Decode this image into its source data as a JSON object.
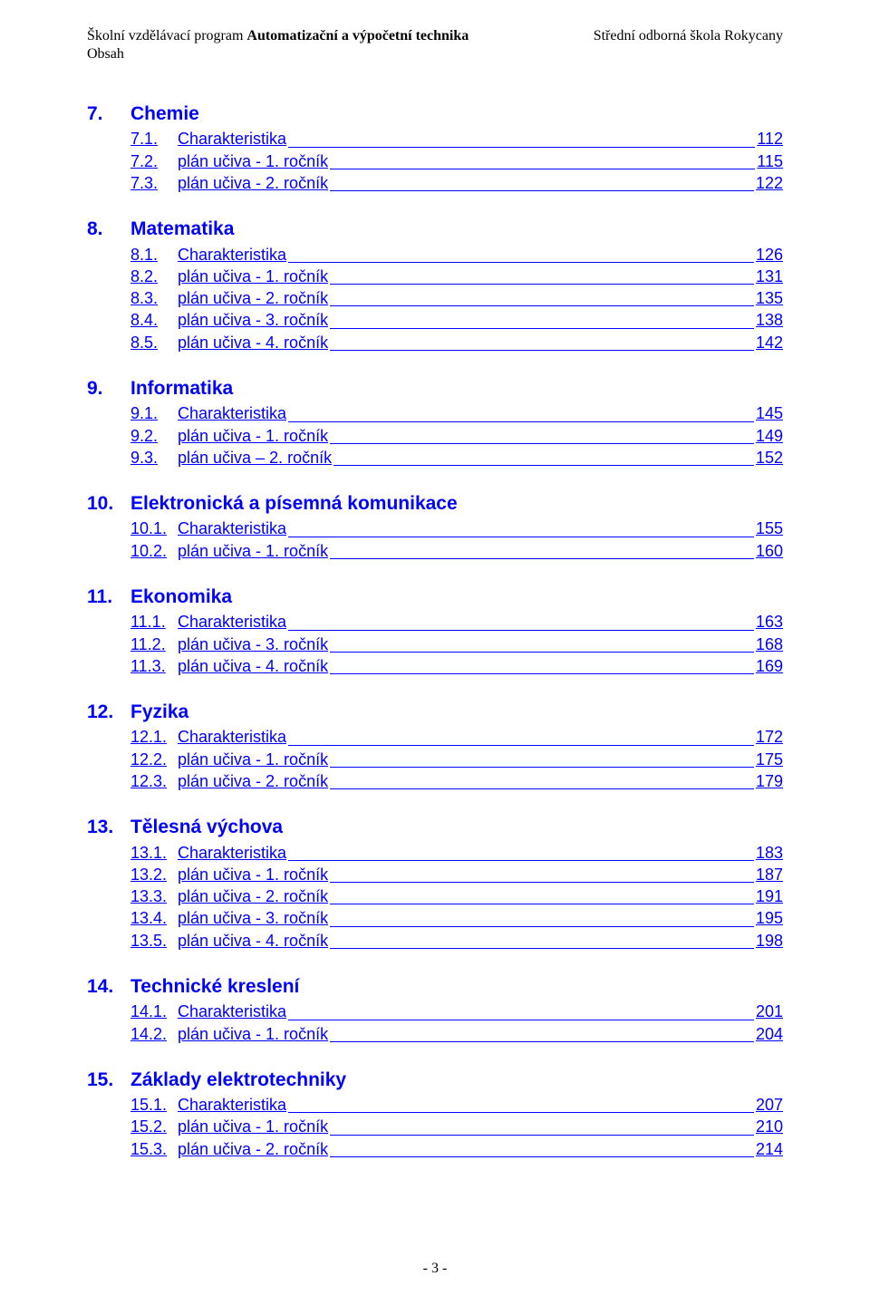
{
  "header": {
    "left_prefix": "Školní vzdělávací program ",
    "left_bold": "Automatizační a výpočetní technika",
    "right": "Střední odborná škola Rokycany",
    "sub": "Obsah"
  },
  "sections": [
    {
      "num": "7.",
      "title": "Chemie",
      "items": [
        {
          "num": "7.1.",
          "label": "Charakteristika",
          "page": "112"
        },
        {
          "num": "7.2.",
          "label": "plán učiva - 1. ročník",
          "page": "115"
        },
        {
          "num": "7.3.",
          "label": "plán učiva - 2. ročník",
          "page": "122"
        }
      ]
    },
    {
      "num": "8.",
      "title": "Matematika",
      "items": [
        {
          "num": "8.1.",
          "label": "Charakteristika",
          "page": "126"
        },
        {
          "num": "8.2.",
          "label": "plán učiva - 1. ročník",
          "page": "131"
        },
        {
          "num": "8.3.",
          "label": "plán učiva - 2. ročník",
          "page": "135"
        },
        {
          "num": "8.4.",
          "label": "plán učiva - 3. ročník",
          "page": "138"
        },
        {
          "num": "8.5.",
          "label": "plán učiva - 4. ročník",
          "page": "142"
        }
      ]
    },
    {
      "num": "9.",
      "title": "Informatika",
      "items": [
        {
          "num": "9.1.",
          "label": "Charakteristika",
          "page": "145"
        },
        {
          "num": "9.2.",
          "label": "plán učiva - 1. ročník",
          "page": "149"
        },
        {
          "num": "9.3.",
          "label": "plán učiva – 2. ročník",
          "page": "152"
        }
      ]
    },
    {
      "num": "10.",
      "title": "Elektronická a písemná komunikace",
      "items": [
        {
          "num": "10.1.",
          "label": "Charakteristika",
          "page": "155"
        },
        {
          "num": "10.2.",
          "label": "plán učiva - 1. ročník",
          "page": "160"
        }
      ]
    },
    {
      "num": "11.",
      "title": "Ekonomika",
      "items": [
        {
          "num": "11.1.",
          "label": "Charakteristika",
          "page": "163"
        },
        {
          "num": "11.2.",
          "label": "plán učiva - 3. ročník",
          "page": "168"
        },
        {
          "num": "11.3.",
          "label": "plán učiva - 4. ročník",
          "page": "169"
        }
      ]
    },
    {
      "num": "12.",
      "title": "Fyzika",
      "items": [
        {
          "num": "12.1.",
          "label": "Charakteristika",
          "page": "172"
        },
        {
          "num": "12.2.",
          "label": "plán učiva - 1. ročník",
          "page": "175"
        },
        {
          "num": "12.3.",
          "label": "plán učiva - 2. ročník",
          "page": "179"
        }
      ]
    },
    {
      "num": "13.",
      "title": "Tělesná výchova",
      "items": [
        {
          "num": "13.1.",
          "label": "Charakteristika",
          "page": "183"
        },
        {
          "num": "13.2.",
          "label": "plán učiva - 1. ročník",
          "page": "187"
        },
        {
          "num": "13.3.",
          "label": "plán učiva - 2. ročník",
          "page": "191"
        },
        {
          "num": "13.4.",
          "label": "plán učiva - 3. ročník",
          "page": "195"
        },
        {
          "num": "13.5.",
          "label": "plán učiva - 4. ročník",
          "page": "198"
        }
      ]
    },
    {
      "num": "14.",
      "title": "Technické kreslení",
      "items": [
        {
          "num": "14.1.",
          "label": "Charakteristika",
          "page": "201"
        },
        {
          "num": "14.2.",
          "label": "plán učiva - 1. ročník",
          "page": "204"
        }
      ]
    },
    {
      "num": "15.",
      "title": "Základy elektrotechniky",
      "items": [
        {
          "num": "15.1.",
          "label": "Charakteristika",
          "page": "207"
        },
        {
          "num": "15.2.",
          "label": "plán učiva - 1. ročník",
          "page": "210"
        },
        {
          "num": "15.3.",
          "label": "plán učiva - 2. ročník",
          "page": "214"
        }
      ]
    }
  ],
  "footer": "- 3 -"
}
